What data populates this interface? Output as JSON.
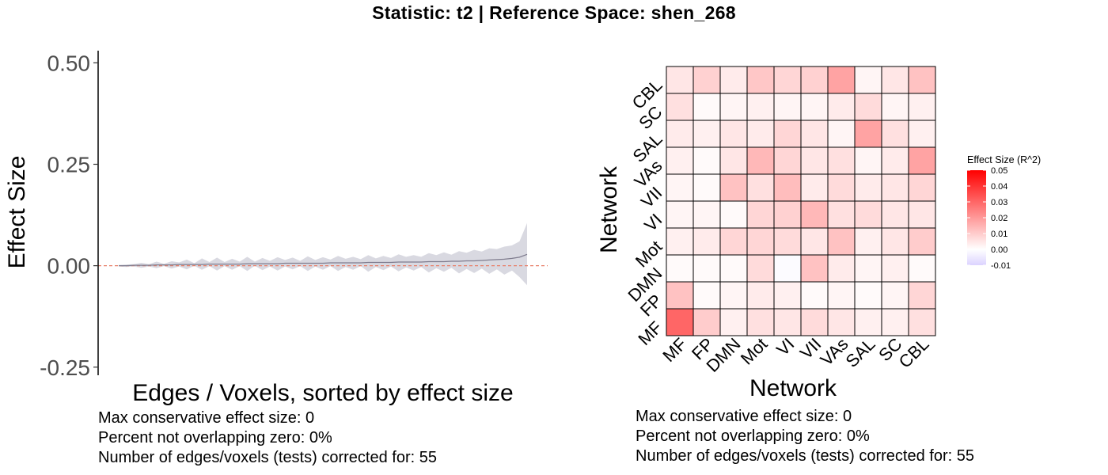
{
  "title": "Statistic: t2   |  Reference Space: shen_268",
  "chart_data": [
    {
      "type": "line",
      "title": "",
      "xlabel": "Edges / Voxels, sorted by effect size",
      "ylabel": "Effect Size",
      "ylim": [
        -0.27,
        0.53
      ],
      "yticks": [
        -0.25,
        0.0,
        0.25,
        0.5
      ],
      "ytick_labels": [
        "-0.25",
        "0.00",
        "0.25",
        "0.50"
      ],
      "reference_line": 0,
      "n_points": 55,
      "series": [
        {
          "values": [
            0.0,
            0.0,
            0.001,
            0.001,
            0.001,
            0.002,
            0.002,
            0.002,
            0.003,
            0.003,
            0.003,
            0.003,
            0.004,
            0.004,
            0.004,
            0.004,
            0.004,
            0.005,
            0.005,
            0.005,
            0.005,
            0.005,
            0.006,
            0.006,
            0.006,
            0.006,
            0.006,
            0.006,
            0.007,
            0.007,
            0.007,
            0.007,
            0.007,
            0.008,
            0.008,
            0.008,
            0.008,
            0.009,
            0.009,
            0.009,
            0.009,
            0.01,
            0.01,
            0.01,
            0.011,
            0.011,
            0.012,
            0.012,
            0.013,
            0.014,
            0.015,
            0.016,
            0.018,
            0.021,
            0.028
          ],
          "ci_lower": [
            -0.002,
            -0.003,
            -0.002,
            -0.005,
            -0.002,
            -0.006,
            -0.001,
            -0.007,
            -0.002,
            -0.009,
            0.0,
            -0.01,
            -0.001,
            -0.012,
            -0.001,
            -0.01,
            -0.001,
            -0.013,
            0.0,
            -0.011,
            -0.002,
            -0.012,
            -0.002,
            -0.009,
            -0.001,
            -0.013,
            -0.002,
            -0.01,
            -0.001,
            -0.013,
            -0.003,
            -0.01,
            -0.001,
            -0.015,
            -0.003,
            -0.011,
            -0.002,
            -0.014,
            -0.004,
            -0.012,
            -0.003,
            -0.017,
            -0.006,
            -0.015,
            -0.005,
            -0.019,
            -0.008,
            -0.018,
            -0.007,
            -0.02,
            -0.009,
            -0.022,
            -0.012,
            -0.028,
            -0.048
          ],
          "ci_upper": [
            0.002,
            0.003,
            0.004,
            0.007,
            0.004,
            0.01,
            0.005,
            0.011,
            0.008,
            0.015,
            0.006,
            0.018,
            0.009,
            0.02,
            0.009,
            0.017,
            0.01,
            0.022,
            0.01,
            0.019,
            0.012,
            0.021,
            0.014,
            0.02,
            0.012,
            0.023,
            0.014,
            0.021,
            0.015,
            0.024,
            0.017,
            0.022,
            0.016,
            0.026,
            0.018,
            0.024,
            0.019,
            0.028,
            0.022,
            0.026,
            0.022,
            0.031,
            0.026,
            0.033,
            0.027,
            0.036,
            0.032,
            0.039,
            0.035,
            0.043,
            0.041,
            0.047,
            0.05,
            0.06,
            0.105
          ]
        }
      ],
      "line_color": "#7f7c8e",
      "band_color": "#d9d9e1",
      "refline_color": "#e8806a"
    },
    {
      "type": "heatmap",
      "title": "",
      "xlabel": "Network",
      "ylabel": "Network",
      "categories": [
        "MF",
        "FP",
        "DMN",
        "Mot",
        "VI",
        "VII",
        "VAs",
        "SAL",
        "SC",
        "CBL"
      ],
      "values": [
        [
          0.03,
          0.01,
          0.003,
          0.006,
          0.005,
          0.007,
          0.005,
          0.003,
          0.003,
          0.006
        ],
        [
          0.012,
          0.001,
          0.002,
          0.004,
          0.003,
          0.001,
          0.002,
          0.001,
          0.002,
          0.008
        ],
        [
          0.001,
          0.001,
          0.001,
          0.007,
          -0.001,
          0.012,
          0.004,
          0.002,
          0.003,
          0.001
        ],
        [
          0.003,
          0.004,
          0.008,
          0.008,
          0.007,
          0.005,
          0.012,
          0.003,
          0.005,
          0.01
        ],
        [
          0.002,
          0.002,
          0.001,
          0.008,
          0.009,
          0.014,
          0.006,
          0.007,
          0.005,
          0.005
        ],
        [
          0.002,
          0.001,
          0.012,
          0.006,
          0.013,
          0.004,
          0.007,
          0.004,
          0.005,
          0.008
        ],
        [
          0.003,
          0.001,
          0.005,
          0.014,
          0.008,
          0.005,
          0.006,
          0.002,
          0.004,
          0.018
        ],
        [
          0.004,
          0.003,
          0.005,
          0.004,
          0.008,
          0.005,
          0.002,
          0.018,
          0.006,
          0.003
        ],
        [
          0.006,
          0.001,
          0.002,
          0.003,
          0.002,
          0.002,
          0.004,
          0.007,
          0.002,
          0.003
        ],
        [
          0.005,
          0.009,
          0.004,
          0.011,
          0.008,
          0.009,
          0.018,
          0.002,
          0.005,
          0.012
        ]
      ],
      "legend": {
        "title": "Effect Size (R^2)",
        "ticks": [
          0.05,
          0.04,
          0.03,
          0.02,
          0.01,
          0.0,
          -0.01
        ],
        "tick_labels": [
          "0.05",
          "0.04",
          "0.03",
          "0.02",
          "0.01",
          "0.00",
          "-0.01"
        ],
        "range": [
          -0.01,
          0.05
        ],
        "low_color": "#dcd3ff",
        "mid_color": "#ffffff",
        "high_color": "#ff0000"
      }
    }
  ],
  "notes_left": [
    "Max conservative effect size: 0",
    "Percent not overlapping zero: 0%",
    "Number of edges/voxels (tests) corrected for: 55"
  ],
  "notes_right": [
    "Max conservative effect size: 0",
    "Percent not overlapping zero: 0%",
    "Number of edges/voxels (tests) corrected for: 55"
  ]
}
